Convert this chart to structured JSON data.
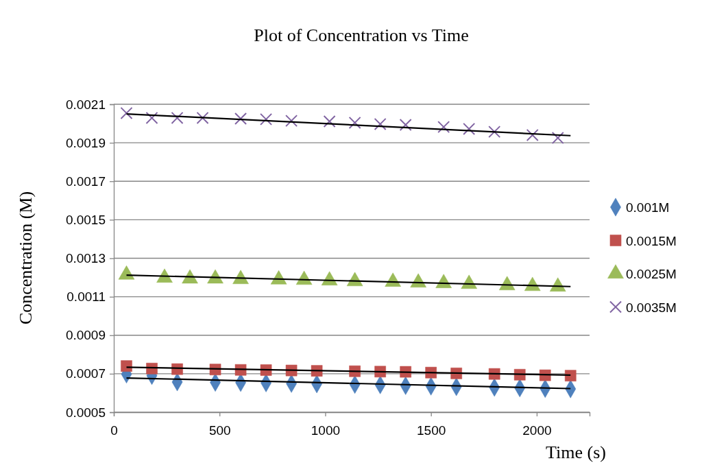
{
  "chart_data": {
    "type": "scatter",
    "title": "Plot of Concentration vs Time",
    "xlabel": "Time (s)",
    "ylabel": "Concentration (M)",
    "xlim": [
      0,
      2250
    ],
    "xticks": [
      0,
      500,
      1000,
      1500,
      2000
    ],
    "ylim": [
      0.0005,
      0.0021
    ],
    "yticks": [
      0.0005,
      0.0007,
      0.0009,
      0.0011,
      0.0013,
      0.0015,
      0.0017,
      0.0019,
      0.0021
    ],
    "grid": "y",
    "legend": "right",
    "series": [
      {
        "name": "0.001M",
        "color": "#4f81bd",
        "marker": "diamond",
        "x": [
          60,
          180,
          300,
          480,
          600,
          720,
          840,
          960,
          1140,
          1260,
          1380,
          1500,
          1620,
          1800,
          1920,
          2040,
          2160
        ],
        "values": [
          0.000698,
          0.00069,
          0.000657,
          0.000655,
          0.000654,
          0.000652,
          0.000649,
          0.000647,
          0.000644,
          0.000642,
          0.000638,
          0.000635,
          0.000632,
          0.000629,
          0.000626,
          0.000623,
          0.000621
        ]
      },
      {
        "name": "0.0015M",
        "color": "#c0504d",
        "marker": "square",
        "x": [
          60,
          180,
          300,
          480,
          600,
          720,
          840,
          960,
          1140,
          1260,
          1380,
          1500,
          1620,
          1800,
          1920,
          2040,
          2160
        ],
        "values": [
          0.00074,
          0.000727,
          0.000724,
          0.000722,
          0.00072,
          0.000719,
          0.000717,
          0.000715,
          0.000713,
          0.000711,
          0.00071,
          0.000706,
          0.000702,
          0.000699,
          0.000695,
          0.000692,
          0.00069
        ]
      },
      {
        "name": "0.0025M",
        "color": "#9bbb59",
        "marker": "triangle",
        "x": [
          60,
          240,
          360,
          480,
          600,
          780,
          900,
          1020,
          1140,
          1320,
          1440,
          1560,
          1680,
          1860,
          1980,
          2100
        ],
        "values": [
          0.001214,
          0.001198,
          0.001194,
          0.001194,
          0.001191,
          0.001189,
          0.001187,
          0.001184,
          0.00118,
          0.001177,
          0.001173,
          0.00117,
          0.001166,
          0.001159,
          0.001155,
          0.001152
        ]
      },
      {
        "name": "0.0035M",
        "color": "#8064a2",
        "marker": "cross",
        "x": [
          60,
          180,
          300,
          420,
          600,
          720,
          840,
          1020,
          1140,
          1260,
          1380,
          1560,
          1680,
          1800,
          1980,
          2100
        ],
        "values": [
          0.002054,
          0.002029,
          0.002029,
          0.002029,
          0.002025,
          0.002022,
          0.002014,
          0.002011,
          0.002004,
          0.001997,
          0.001993,
          0.001982,
          0.001972,
          0.001957,
          0.00194,
          0.001925
        ]
      },
      {
        "type": "line",
        "color": "#000000",
        "marker": "none",
        "x": [
          60,
          2160
        ],
        "values": [
          0.000678,
          0.000623
        ]
      },
      {
        "type": "line",
        "color": "#000000",
        "marker": "none",
        "x": [
          60,
          2160
        ],
        "values": [
          0.000734,
          0.000693
        ]
      },
      {
        "type": "line",
        "color": "#000000",
        "marker": "none",
        "x": [
          60,
          2160
        ],
        "values": [
          0.001212,
          0.001153
        ]
      },
      {
        "type": "line",
        "color": "#000000",
        "marker": "none",
        "x": [
          60,
          2160
        ],
        "values": [
          0.00205,
          0.001937
        ]
      }
    ]
  }
}
